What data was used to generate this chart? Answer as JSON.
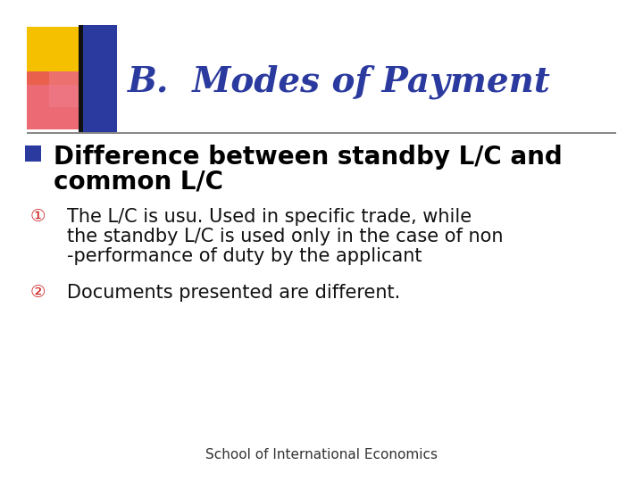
{
  "title": "B.  Modes of Payment",
  "title_color": "#2B3A9E",
  "title_fontsize": 28,
  "bg_color": "#FFFFFF",
  "bullet_main_line1": "Difference between standby L/C and",
  "bullet_main_line2": "common L/C",
  "bullet_main_fontsize": 20,
  "bullet_main_color": "#000000",
  "bullet_marker_color": "#2B3A9E",
  "item1_marker": "①",
  "item1_marker_color": "#CC2222",
  "item1_line1": "The L/C is usu. Used in specific trade, while",
  "item1_line2": "the standby L/C is used only in the case of non",
  "item1_line3": "-performance of duty by the applicant",
  "item1_fontsize": 15,
  "item2_marker": "②",
  "item2_marker_color": "#CC2222",
  "item2_text": "Documents presented are different.",
  "item2_fontsize": 15,
  "footer": "School of International Economics",
  "footer_fontsize": 11,
  "footer_color": "#333333"
}
